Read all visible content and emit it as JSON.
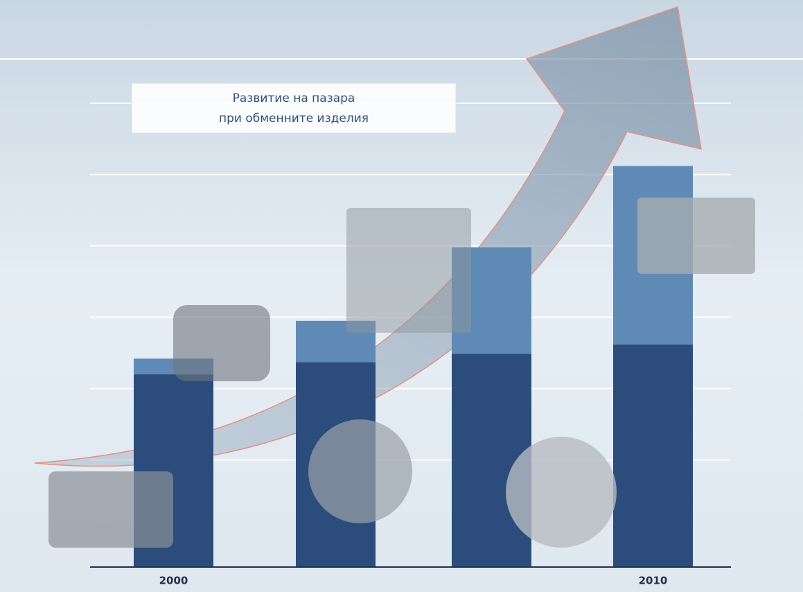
{
  "chart_data": {
    "type": "stacked_bar",
    "title_lines": [
      "Развитие на пазара",
      "при обменните изделия"
    ],
    "categories": [
      "2000",
      null,
      null,
      "2010"
    ],
    "series": [
      {
        "color": "#2c4d7b",
        "values": [
          2.7,
          2.87,
          2.99,
          3.12
        ]
      },
      {
        "color": "#5f8ab6",
        "values": [
          0.22,
          0.58,
          1.49,
          2.5
        ]
      }
    ],
    "ylim": [
      0,
      7.8
    ],
    "gridlines": [
      1.5,
      2.5,
      3.5,
      4.5,
      5.5,
      6.5
    ],
    "grid": true
  }
}
